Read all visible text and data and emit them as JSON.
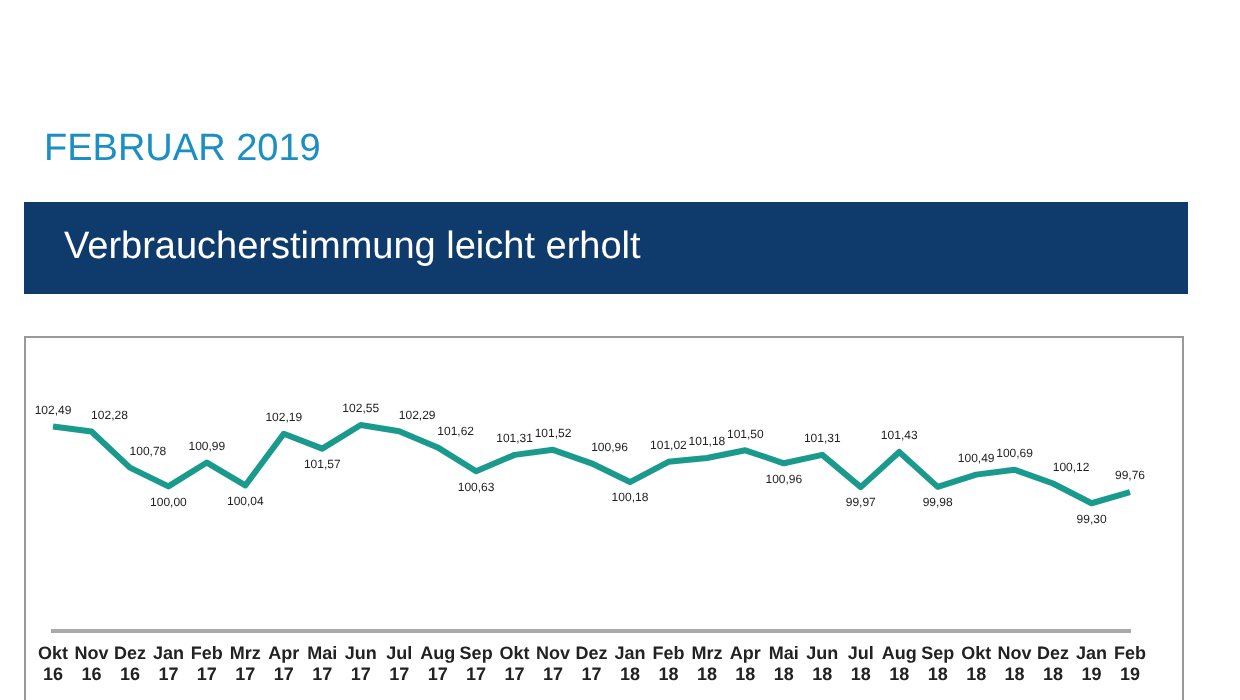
{
  "chart_data": {
    "type": "line",
    "subtitle": "FEBRUAR 2019",
    "title": "Verbraucherstimmung leicht erholt",
    "categories": [
      "Okt 16",
      "Nov 16",
      "Dez 16",
      "Jan 17",
      "Feb 17",
      "Mrz 17",
      "Apr 17",
      "Mai 17",
      "Jun 17",
      "Jul 17",
      "Aug 17",
      "Sep 17",
      "Okt 17",
      "Nov 17",
      "Dez 17",
      "Jan 18",
      "Feb 18",
      "Mrz 18",
      "Apr 18",
      "Mai 18",
      "Jun 18",
      "Jul 18",
      "Aug 18",
      "Sep 18",
      "Okt 18",
      "Nov 18",
      "Dez 18",
      "Jan 19",
      "Feb 19"
    ],
    "values": [
      102.49,
      102.28,
      100.78,
      100.0,
      100.99,
      100.04,
      102.19,
      101.57,
      102.55,
      102.29,
      101.62,
      100.63,
      101.31,
      101.52,
      100.96,
      100.18,
      101.02,
      101.18,
      101.5,
      100.96,
      101.31,
      99.97,
      101.43,
      99.98,
      100.49,
      100.69,
      100.12,
      99.3,
      99.76
    ],
    "value_labels": [
      "102,49",
      "102,28",
      "100,78",
      "100,00",
      "100,99",
      "100,04",
      "102,19",
      "101,57",
      "102,55",
      "102,29",
      "101,62",
      "100,63",
      "101,31",
      "101,52",
      "100,96",
      "100,18",
      "101,02",
      "101,18",
      "101,50",
      "100,96",
      "101,31",
      "99,97",
      "101,43",
      "99,98",
      "100,49",
      "100,69",
      "100,12",
      "99,30",
      "99,76"
    ],
    "color": "#1a9a8c",
    "tick_labels": "x",
    "marker": "none",
    "line_style": "solid",
    "grid": false,
    "legend": false
  }
}
